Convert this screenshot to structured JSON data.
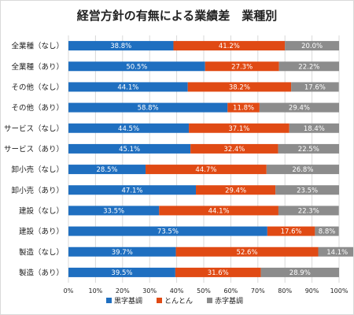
{
  "chart_data": {
    "type": "bar",
    "orientation": "horizontal",
    "stacked": "percent",
    "title": "経営方針の有無による業績差　業種別",
    "categories": [
      "全業種（なし）",
      "全業種（あり）",
      "その他（なし）",
      "その他（あり）",
      "サービス（なし）",
      "サービス（あり）",
      "卸小売（なし）",
      "卸小売（あり）",
      "建設（なし）",
      "建設（あり）",
      "製造（なし）",
      "製造（あり）"
    ],
    "series": [
      {
        "name": "黒字基調",
        "color": "#1f6fc0",
        "values": [
          38.8,
          50.5,
          44.1,
          58.8,
          44.5,
          45.1,
          28.5,
          47.1,
          33.5,
          73.5,
          39.7,
          39.5
        ],
        "labels": [
          "38.8%",
          "50.5%",
          "44.1%",
          "58.8%",
          "44.5%",
          "45.1%",
          "28.5%",
          "47.1%",
          "33.5%",
          "73.5%",
          "39.7%",
          "39.5%"
        ]
      },
      {
        "name": "とんとん",
        "color": "#e04a14",
        "values": [
          41.2,
          27.3,
          38.2,
          11.8,
          37.1,
          32.4,
          44.7,
          29.4,
          44.1,
          17.6,
          52.6,
          31.6
        ],
        "labels": [
          "41.2%",
          "27.3%",
          "38.2%",
          "11.8%",
          "37.1%",
          "32.4%",
          "44.7%",
          "29.4%",
          "44.1%",
          "17.6%",
          "52.6%",
          "31.6%"
        ]
      },
      {
        "name": "赤字基調",
        "color": "#8c8c8c",
        "values": [
          20.0,
          22.2,
          17.6,
          29.4,
          18.4,
          22.5,
          26.8,
          23.5,
          22.3,
          8.8,
          14.1,
          28.9
        ],
        "labels": [
          "20.0%",
          "22.2%",
          "17.6%",
          "29.4%",
          "18.4%",
          "22.5%",
          "26.8%",
          "23.5%",
          "22.3%",
          "8.8%",
          "14.1%",
          "28.9%"
        ]
      }
    ],
    "xlim": [
      0,
      100
    ],
    "x_ticks": [
      "0%",
      "10%",
      "20%",
      "30%",
      "40%",
      "50%",
      "60%",
      "70%",
      "80%",
      "90%",
      "100%"
    ],
    "grid": true,
    "legend_position": "bottom"
  }
}
